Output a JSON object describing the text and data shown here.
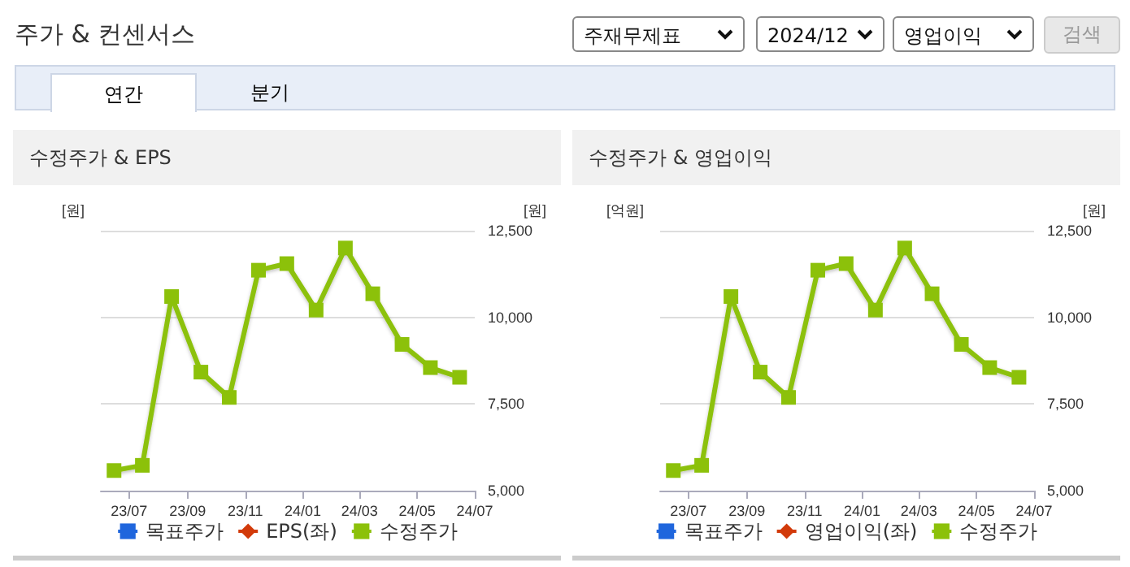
{
  "chart_data": [
    {
      "type": "other",
      "title": "주가 & 컨센서스",
      "annotations": [
        "주재무제표",
        "2024/12",
        "영업이익",
        "검색",
        "연간",
        "분기"
      ]
    },
    {
      "type": "line",
      "title": "수정주가 & EPS",
      "ylabel": "[원]",
      "y2label": "[원]",
      "x": [
        "2023-06-15",
        "2023-07-15",
        "2023-08-15",
        "2023-09-15",
        "2023-10-15",
        "2023-11-15",
        "2023-12-15",
        "2024-01-15",
        "2024-02-15",
        "2024-03-15",
        "2024-04-15",
        "2024-05-15",
        "2024-06-15"
      ],
      "xlim": [
        "2023-06-01",
        "2024-07-01"
      ],
      "xticks": [
        {
          "value": "2023-07-01",
          "label": "23/07"
        },
        {
          "value": "2023-09-01",
          "label": "23/09"
        },
        {
          "value": "2023-11-01",
          "label": "23/11"
        },
        {
          "value": "2024-01-01",
          "label": "24/01"
        },
        {
          "value": "2024-03-01",
          "label": "24/03"
        },
        {
          "value": "2024-05-01",
          "label": "24/05"
        },
        {
          "value": "2024-07-01",
          "label": "24/07"
        }
      ],
      "y2lim": [
        5000,
        12500
      ],
      "y2ticks": [
        {
          "value": 5000,
          "label": "5,000"
        },
        {
          "value": 7500,
          "label": "7,500"
        },
        {
          "value": 10000,
          "label": "10,000"
        },
        {
          "value": 12500,
          "label": "12,500"
        }
      ],
      "grid": "y",
      "legend": "bottom",
      "series": [
        {
          "name": "목표주가",
          "color": "#1f66dd",
          "marker": "square",
          "axis": "y2",
          "values": [
            null,
            null,
            null,
            null,
            null,
            null,
            null,
            null,
            null,
            null,
            null,
            null,
            null
          ]
        },
        {
          "name": "EPS(좌)",
          "color": "#d23a0a",
          "marker": "diamond",
          "axis": "y",
          "values": [
            null,
            null,
            null,
            null,
            null,
            null,
            null,
            null,
            null,
            null,
            null,
            null,
            null
          ]
        },
        {
          "name": "수정주가",
          "color": "#8cc10a",
          "marker": "square",
          "axis": "y2",
          "values": [
            5580,
            5730,
            10600,
            8420,
            7690,
            11360,
            11550,
            10210,
            12000,
            10680,
            9220,
            8550,
            8270
          ]
        }
      ]
    },
    {
      "type": "line",
      "title": "수정주가 & 영업이익",
      "ylabel": "[억원]",
      "y2label": "[원]",
      "x": [
        "2023-06-15",
        "2023-07-15",
        "2023-08-15",
        "2023-09-15",
        "2023-10-15",
        "2023-11-15",
        "2023-12-15",
        "2024-01-15",
        "2024-02-15",
        "2024-03-15",
        "2024-04-15",
        "2024-05-15",
        "2024-06-15"
      ],
      "xlim": [
        "2023-06-01",
        "2024-07-01"
      ],
      "xticks": [
        {
          "value": "2023-07-01",
          "label": "23/07"
        },
        {
          "value": "2023-09-01",
          "label": "23/09"
        },
        {
          "value": "2023-11-01",
          "label": "23/11"
        },
        {
          "value": "2024-01-01",
          "label": "24/01"
        },
        {
          "value": "2024-03-01",
          "label": "24/03"
        },
        {
          "value": "2024-05-01",
          "label": "24/05"
        },
        {
          "value": "2024-07-01",
          "label": "24/07"
        }
      ],
      "y2lim": [
        5000,
        12500
      ],
      "y2ticks": [
        {
          "value": 5000,
          "label": "5,000"
        },
        {
          "value": 7500,
          "label": "7,500"
        },
        {
          "value": 10000,
          "label": "10,000"
        },
        {
          "value": 12500,
          "label": "12,500"
        }
      ],
      "grid": "y",
      "legend": "bottom",
      "series": [
        {
          "name": "목표주가",
          "color": "#1f66dd",
          "marker": "square",
          "axis": "y2",
          "values": [
            null,
            null,
            null,
            null,
            null,
            null,
            null,
            null,
            null,
            null,
            null,
            null,
            null
          ]
        },
        {
          "name": "영업이익(좌)",
          "color": "#d23a0a",
          "marker": "diamond",
          "axis": "y",
          "values": [
            null,
            null,
            null,
            null,
            null,
            null,
            null,
            null,
            null,
            null,
            null,
            null,
            null
          ]
        },
        {
          "name": "수정주가",
          "color": "#8cc10a",
          "marker": "square",
          "axis": "y2",
          "values": [
            5580,
            5730,
            10600,
            8420,
            7690,
            11360,
            11550,
            10210,
            12000,
            10680,
            9220,
            8550,
            8270
          ]
        }
      ]
    }
  ]
}
